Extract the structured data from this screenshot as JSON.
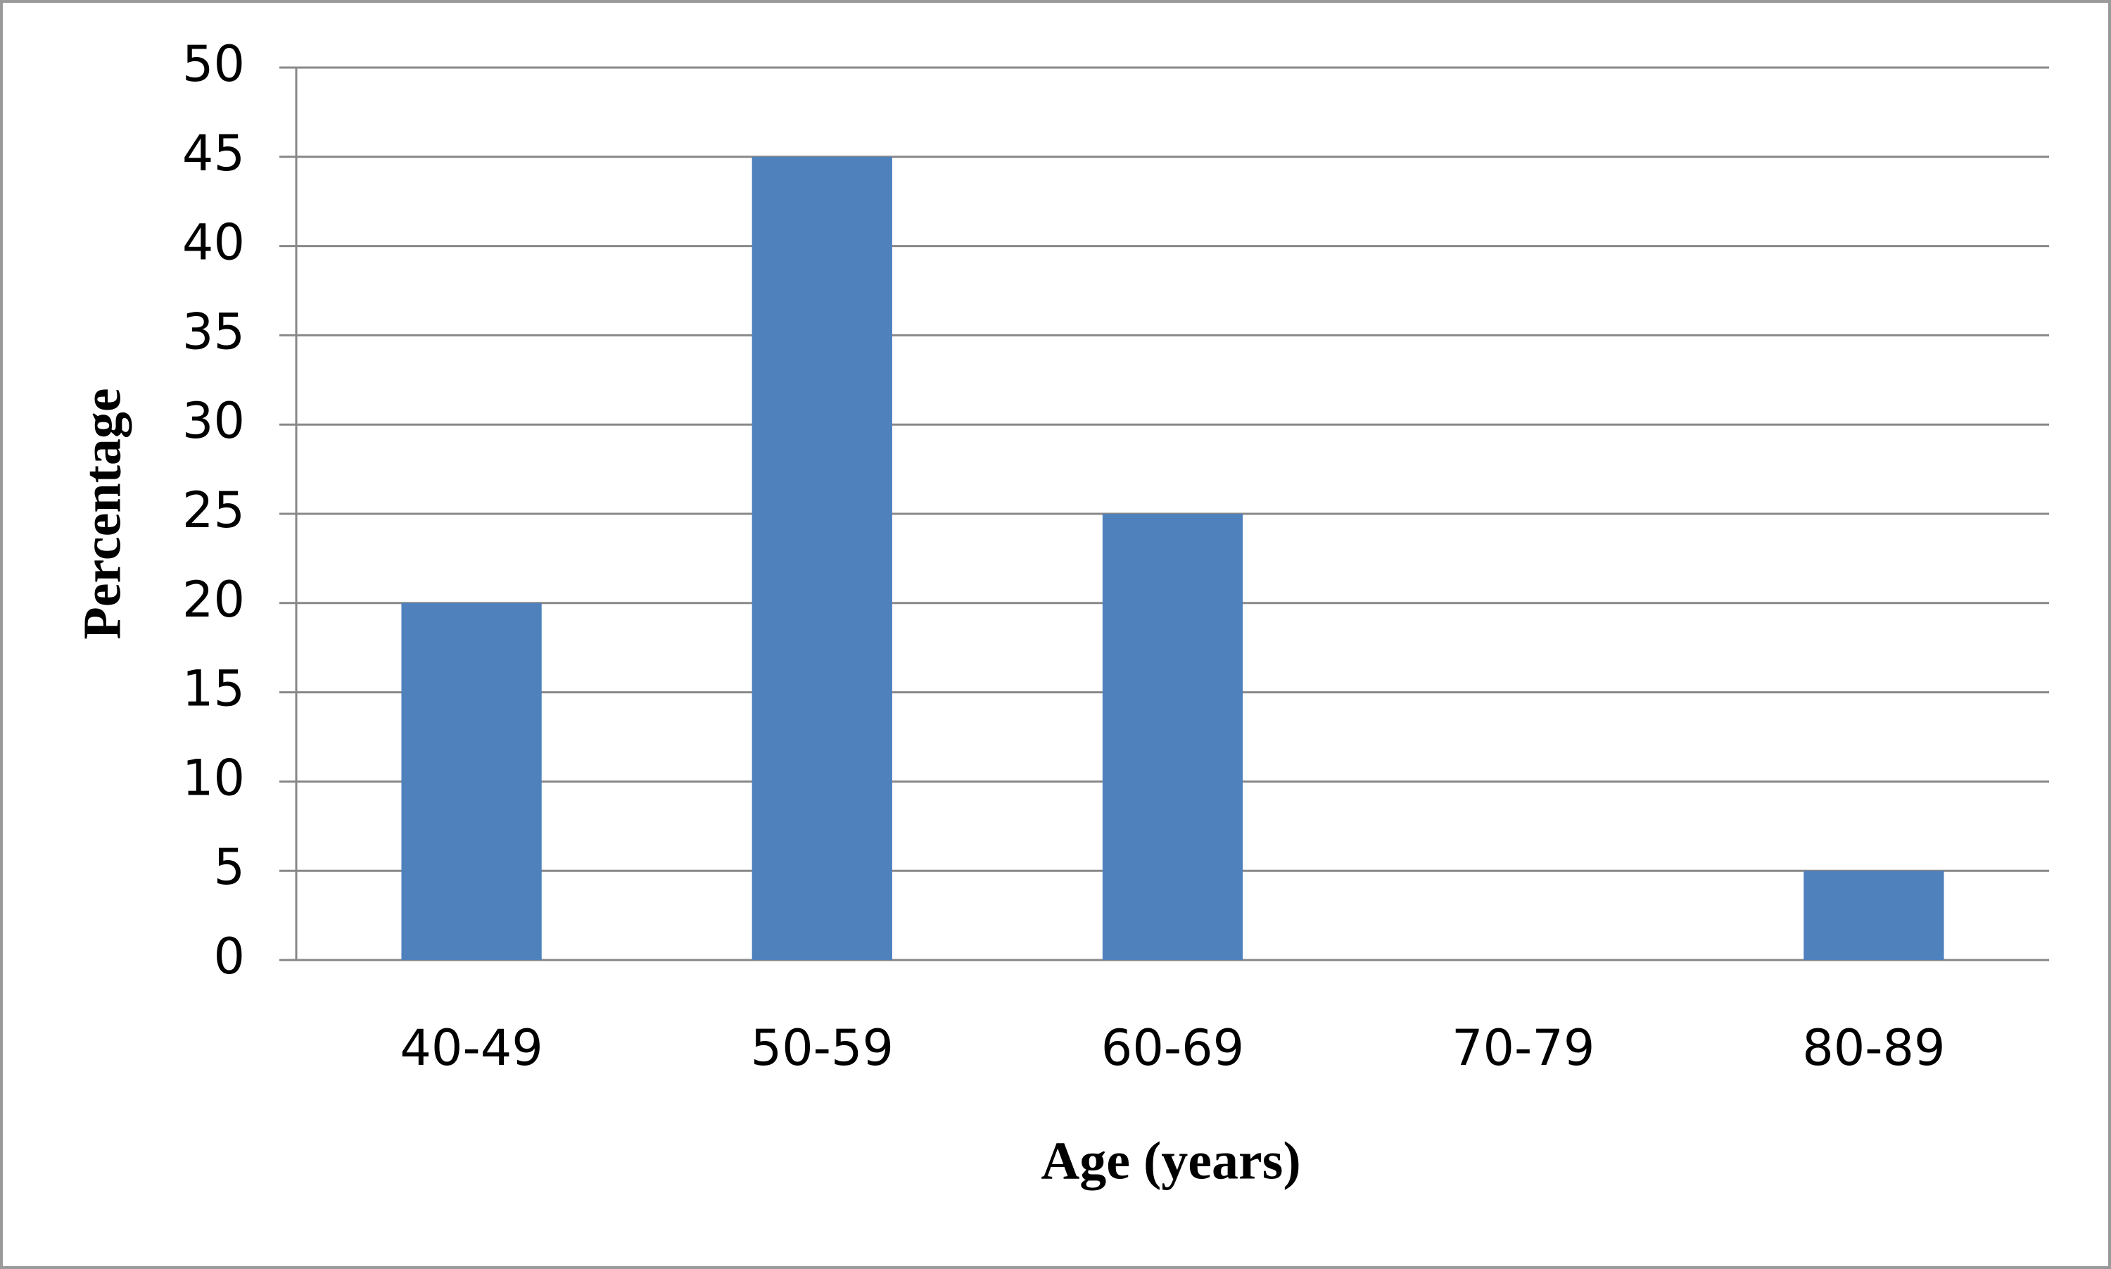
{
  "chart_data": {
    "type": "bar",
    "y_label": "Percentage",
    "x_label": "Age (years)",
    "categories": [
      "40-49",
      "50-59",
      "60-69",
      "70-79",
      "80-89"
    ],
    "values": [
      20,
      45,
      25,
      0,
      5
    ],
    "color": "#4f81bd",
    "ylim": [
      0,
      50
    ],
    "yticks": [
      0,
      5,
      10,
      15,
      20,
      25,
      30,
      35,
      40,
      45,
      50
    ],
    "grid": true
  }
}
